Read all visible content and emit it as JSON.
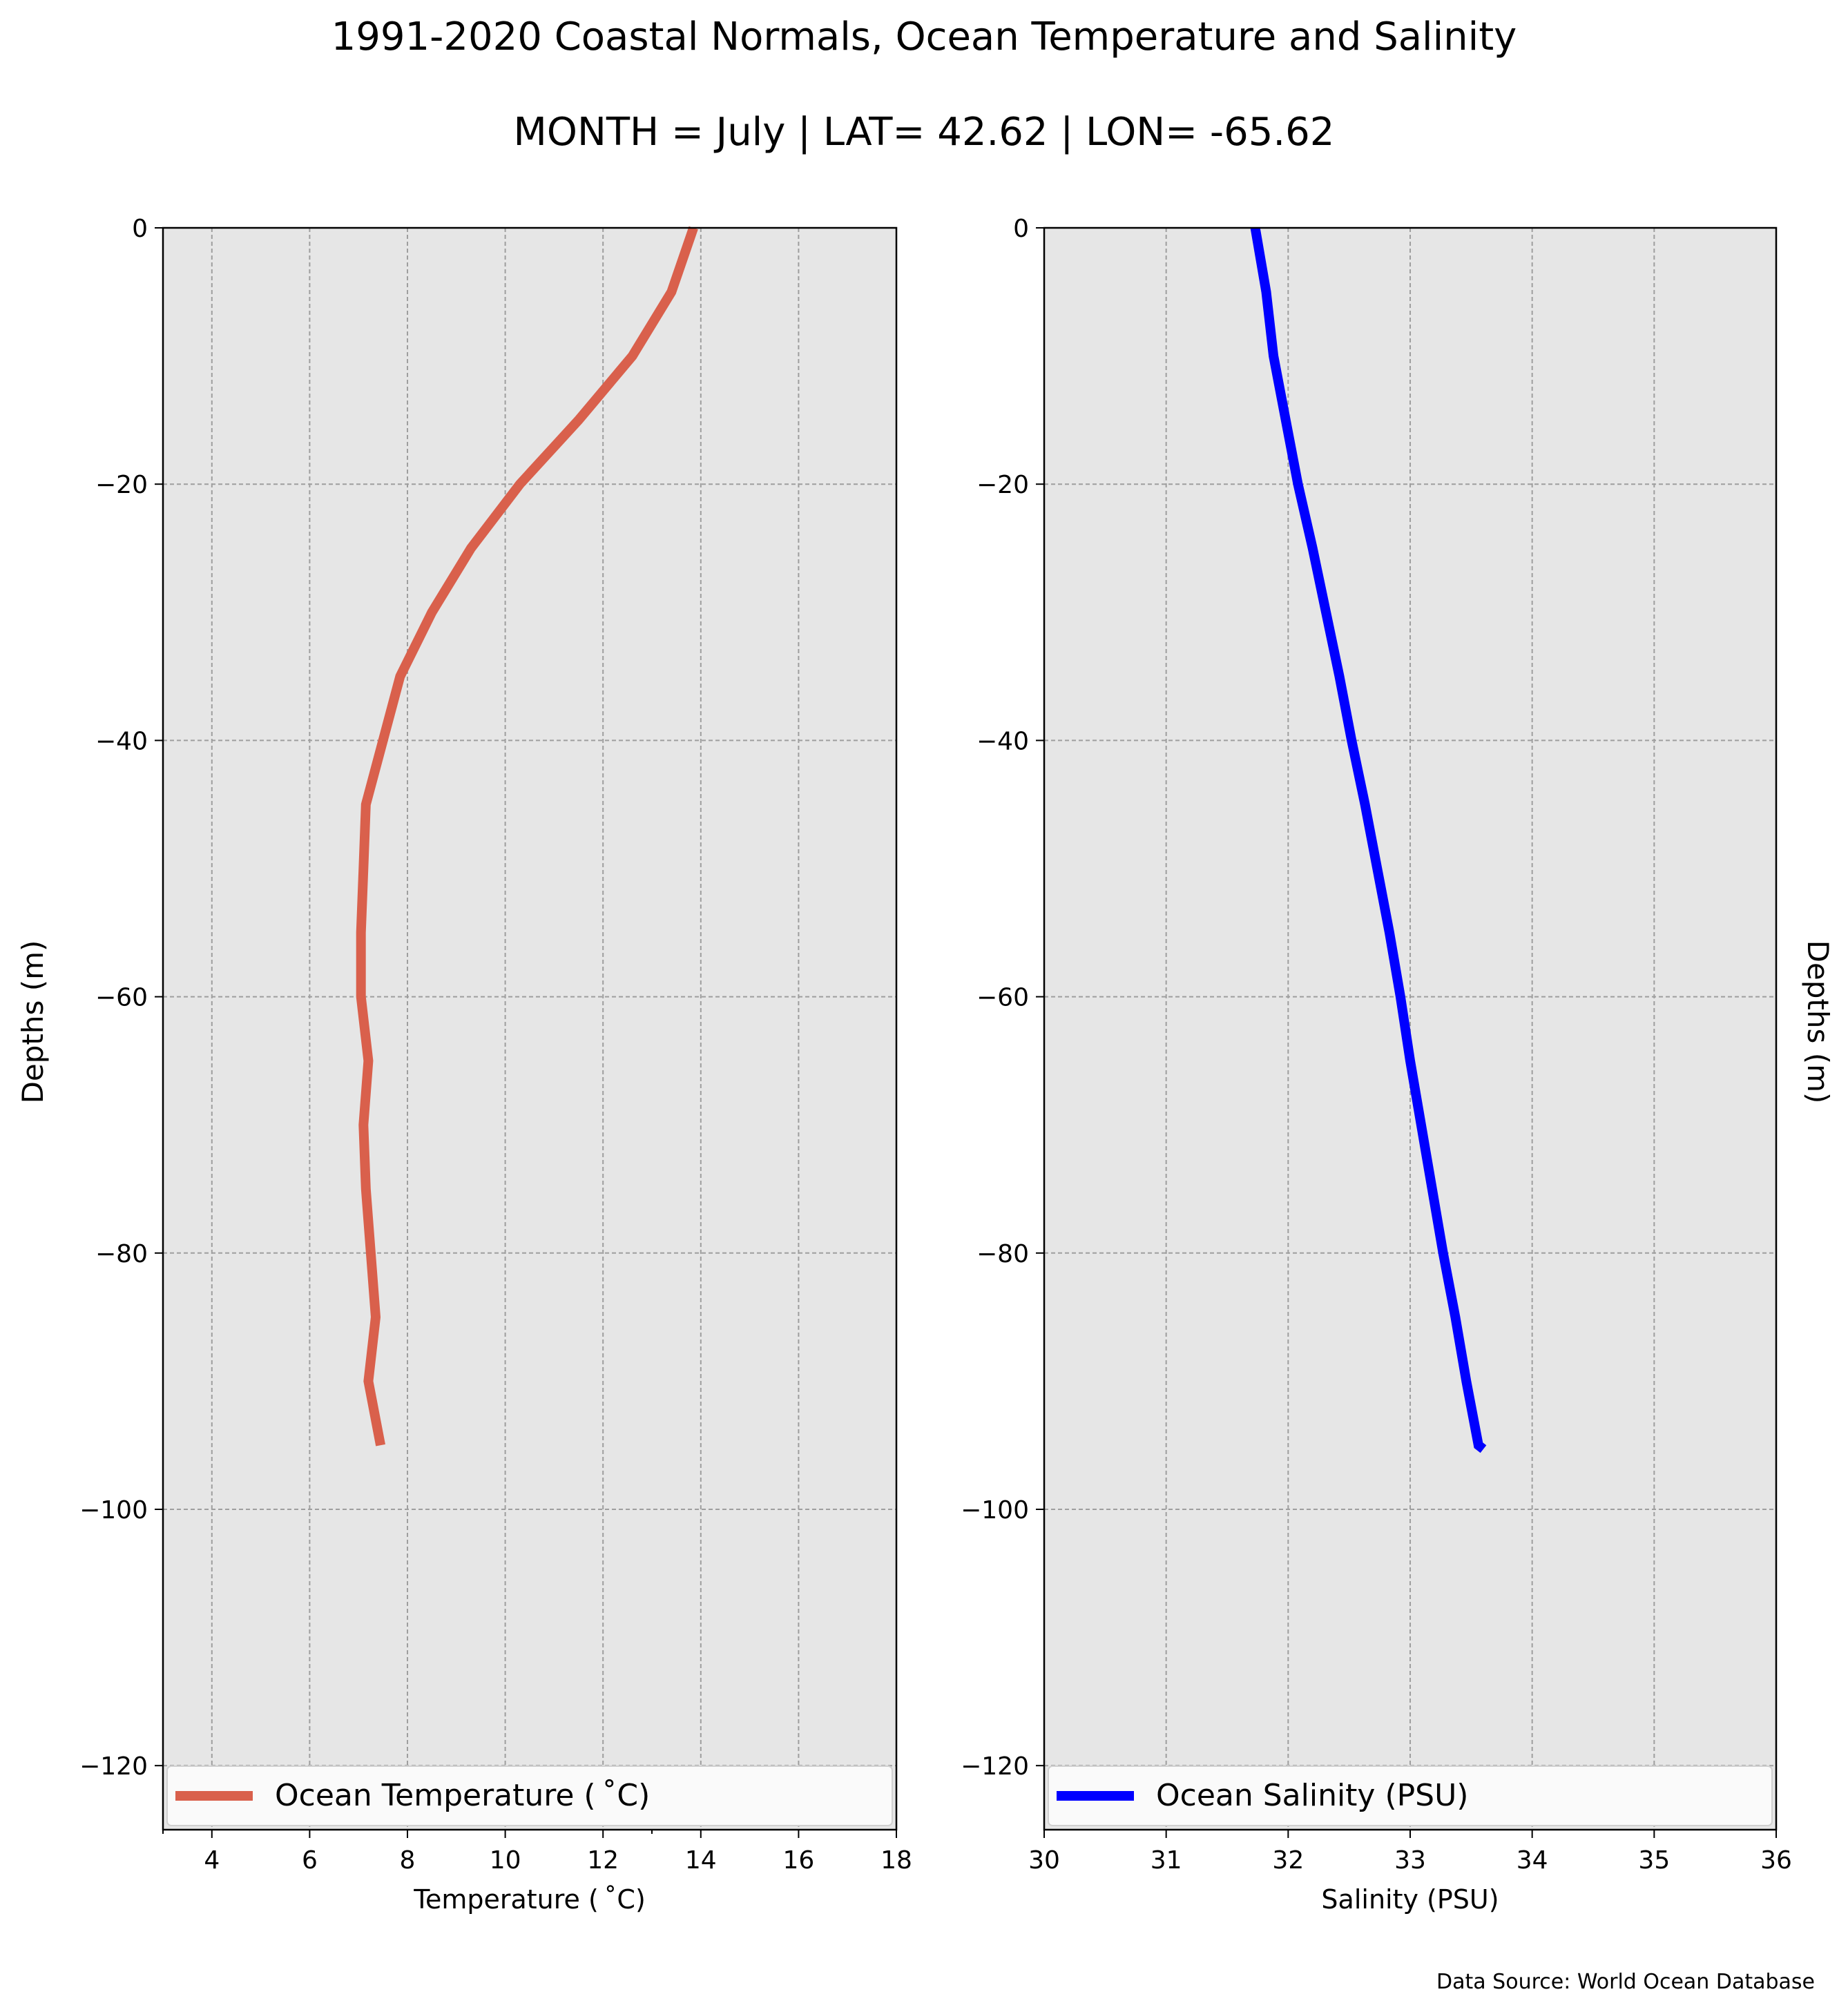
{
  "figure": {
    "title": "1991-2020 Coastal Normals, Ocean Temperature and Salinity",
    "subtitle": "MONTH = July | LAT= 42.62 | LON= -65.62",
    "source_note": "Data Source: World Ocean Database",
    "background_color": "#e6e6e6",
    "grid_color": "#9e9e9e"
  },
  "chart_data": [
    {
      "type": "line",
      "xlabel": "Temperature ($^\\circ$C)",
      "xlabel_display": "Temperature ( ˚C)",
      "ylabel": "Depths (m)",
      "xlim": [
        3,
        18
      ],
      "ylim": [
        -125,
        0
      ],
      "xticks": [
        4,
        6,
        8,
        10,
        12,
        14,
        16,
        18
      ],
      "xticks_minor": [
        3,
        13
      ],
      "yticks": [
        0,
        -20,
        -40,
        -60,
        -80,
        -100,
        -120
      ],
      "grid": true,
      "legend_position": "bottom",
      "series": [
        {
          "name": "Ocean Temperature ( ˚C)",
          "color": "#d9604c",
          "x": [
            13.85,
            13.4,
            12.6,
            11.5,
            10.3,
            9.3,
            8.5,
            7.85,
            7.5,
            7.15,
            7.1,
            7.05,
            7.05,
            7.2,
            7.1,
            7.15,
            7.25,
            7.35,
            7.2,
            7.45
          ],
          "y": [
            0,
            -5,
            -10,
            -15,
            -20,
            -25,
            -30,
            -35,
            -40,
            -45,
            -50,
            -55,
            -60,
            -65,
            -70,
            -75,
            -80,
            -85,
            -90,
            -95
          ]
        }
      ]
    },
    {
      "type": "line",
      "xlabel": "Salinity (PSU)",
      "ylabel": "Depths (m)",
      "xlim": [
        30,
        36
      ],
      "ylim": [
        -125,
        0
      ],
      "xticks": [
        30,
        31,
        32,
        33,
        34,
        35,
        36
      ],
      "yticks": [
        0,
        -20,
        -40,
        -60,
        -80,
        -100,
        -120
      ],
      "grid": true,
      "legend_position": "bottom",
      "series": [
        {
          "name": "Ocean Salinity (PSU)",
          "color": "#0000ff",
          "x": [
            31.73,
            31.82,
            31.88,
            31.98,
            32.08,
            32.2,
            32.31,
            32.42,
            32.52,
            32.63,
            32.73,
            32.83,
            32.92,
            33.0,
            33.09,
            33.18,
            33.27,
            33.37,
            33.46,
            33.51,
            33.56,
            33.6
          ],
          "y": [
            0,
            -5,
            -10,
            -15,
            -20,
            -25,
            -30,
            -35,
            -40,
            -45,
            -50,
            -55,
            -60,
            -65,
            -70,
            -75,
            -80,
            -85,
            -90,
            -92.5,
            -95,
            -95.3
          ]
        }
      ]
    }
  ]
}
